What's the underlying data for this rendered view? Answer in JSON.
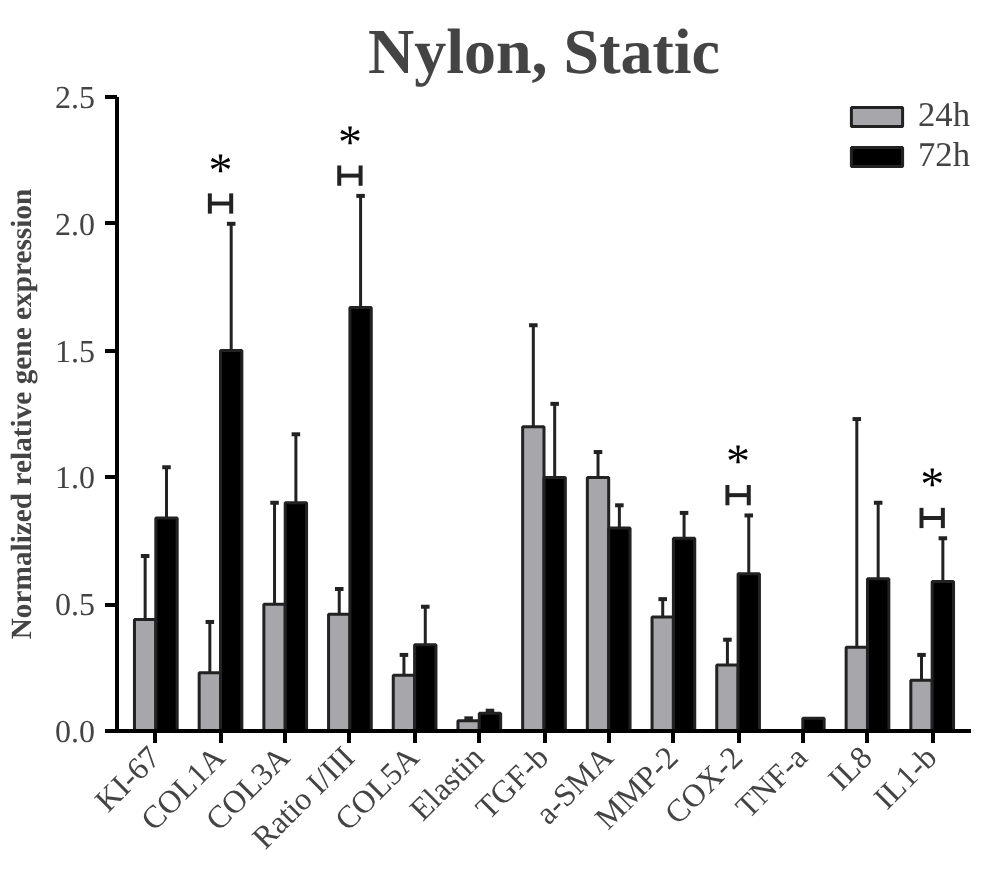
{
  "chart_data": {
    "type": "bar",
    "title": "Nylon, Static",
    "ylabel": "Normalized relative gene expression",
    "categories": [
      "KI-67",
      "COL1A",
      "COL3A",
      "Ratio I/III",
      "COL5A",
      "Elastin",
      "TGF-b",
      "a-SMA",
      "MMP-2",
      "COX-2",
      "TNF-a",
      "IL8",
      "IL1-b"
    ],
    "series": [
      {
        "name": "24h",
        "color": "#a6a6ab",
        "values": [
          0.44,
          0.23,
          0.5,
          0.46,
          0.22,
          0.04,
          1.2,
          1.0,
          0.45,
          0.26,
          null,
          0.33,
          0.2
        ],
        "errors": [
          [
            0.44,
            0.69
          ],
          [
            0.23,
            0.43
          ],
          [
            0.5,
            0.9
          ],
          [
            0.46,
            0.56
          ],
          [
            0.22,
            0.3
          ],
          [
            0.04,
            0.05
          ],
          [
            1.2,
            1.6
          ],
          [
            1.0,
            1.1
          ],
          [
            0.45,
            0.52
          ],
          [
            0.26,
            0.36
          ],
          null,
          [
            0.33,
            1.23
          ],
          [
            0.2,
            0.3
          ]
        ]
      },
      {
        "name": "72h",
        "color": "#000000",
        "values": [
          0.84,
          1.5,
          0.9,
          1.67,
          0.34,
          0.07,
          1.0,
          0.8,
          0.76,
          0.62,
          0.05,
          0.6,
          0.59
        ],
        "errors": [
          [
            0.84,
            1.04
          ],
          [
            1.5,
            2.0
          ],
          [
            0.9,
            1.17
          ],
          [
            1.67,
            2.11
          ],
          [
            0.34,
            0.49
          ],
          [
            0.07,
            0.08
          ],
          [
            1.0,
            1.29
          ],
          [
            0.8,
            0.89
          ],
          [
            0.76,
            0.86
          ],
          [
            0.62,
            0.85
          ],
          null,
          [
            0.6,
            0.9
          ],
          [
            0.59,
            0.76
          ]
        ]
      }
    ],
    "ylim": [
      0,
      2.5
    ],
    "yticks": [
      {
        "value": 0,
        "label": "0.0"
      },
      0.5,
      {
        "value": 1,
        "label": "1.0"
      },
      1.5,
      {
        "value": 2,
        "label": "2.0"
      },
      2.5
    ],
    "annotations": [
      {
        "text": "*",
        "x": "COL1A",
        "y": 2.0
      },
      {
        "text": "*",
        "x": "Ratio I/III",
        "y": 2.11
      },
      {
        "text": "*",
        "x": "COX-2",
        "y": 0.85
      },
      {
        "text": "*",
        "x": "IL1-b",
        "y": 0.76
      }
    ],
    "grid": false,
    "legend": "top right"
  }
}
